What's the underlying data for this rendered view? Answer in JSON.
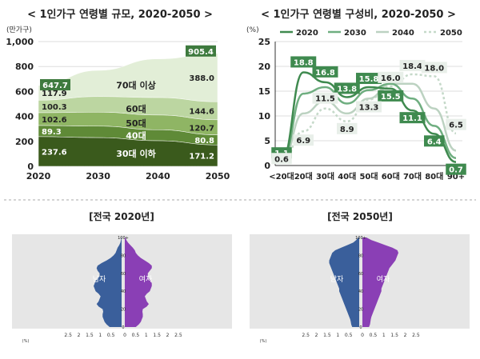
{
  "chart_data": [
    {
      "type": "area",
      "title": "< 1인가구 연령별 규모, 2020-2050 >",
      "ylabel": "(만가구)",
      "ylim": [
        0,
        1000
      ],
      "yticks": [
        "0",
        "200",
        "400",
        "600",
        "800",
        "1,000"
      ],
      "xticks": [
        "2020",
        "2030",
        "2040",
        "2050"
      ],
      "total_labels": [
        "647.7",
        "905.4"
      ],
      "series": [
        {
          "name": "30대 이하",
          "color": "#3a5a1c",
          "left_label": "237.6",
          "right_label": "171.2",
          "values": [
            237.6,
            230,
            205,
            171.2
          ]
        },
        {
          "name": "40대",
          "color": "#5f8a37",
          "left_label": "89.3",
          "right_label": "80.8",
          "values": [
            89.3,
            92,
            88,
            80.8
          ]
        },
        {
          "name": "50대",
          "color": "#8fb564",
          "left_label": "102.6",
          "right_label": "120.7",
          "values": [
            102.6,
            112,
            118,
            120.7
          ]
        },
        {
          "name": "60대",
          "color": "#bcd6a1",
          "left_label": "100.3",
          "right_label": "144.6",
          "values": [
            100.3,
            125,
            140,
            144.6
          ]
        },
        {
          "name": "70대 이상",
          "color": "#e2eed7",
          "left_label": "117.9",
          "right_label": "388.0",
          "values": [
            117.9,
            210,
            310,
            388.0
          ]
        }
      ]
    },
    {
      "type": "line",
      "title": "< 1인가구 연령별 구성비, 2020-2050 >",
      "ylabel": "(%)",
      "ylim": [
        0,
        25
      ],
      "yticks": [
        "0",
        "5",
        "10",
        "15",
        "20",
        "25"
      ],
      "categories": [
        "<20대",
        "20대",
        "30대",
        "40대",
        "50대",
        "60대",
        "70대",
        "80대",
        "90+"
      ],
      "series": [
        {
          "name": "2020",
          "color": "#3f8a4f",
          "dash": "",
          "values": [
            1.1,
            18.8,
            16.8,
            13.8,
            15.8,
            15.5,
            11.1,
            6.4,
            0.7
          ]
        },
        {
          "name": "2030",
          "color": "#6fae80",
          "dash": "",
          "values": [
            0.8,
            14.5,
            15.8,
            12.5,
            15.2,
            16.5,
            13.5,
            8.0,
            1.5
          ]
        },
        {
          "name": "2040",
          "color": "#bcd2c1",
          "dash": "",
          "values": [
            0.7,
            10.5,
            13.0,
            10.5,
            13.5,
            16.5,
            16.5,
            11.5,
            3.0
          ]
        },
        {
          "name": "2050",
          "color": "#c5d9c9",
          "dash": "3,3",
          "values": [
            0.6,
            6.9,
            11.5,
            8.9,
            13.3,
            16.0,
            18.4,
            18.0,
            6.5
          ]
        }
      ],
      "labels_2020": [
        {
          "idx": 0,
          "text": "1.1"
        },
        {
          "idx": 1,
          "text": "18.8"
        },
        {
          "idx": 2,
          "text": "16.8"
        },
        {
          "idx": 3,
          "text": "13.8"
        },
        {
          "idx": 4,
          "text": "15.8"
        },
        {
          "idx": 5,
          "text": "15.5"
        },
        {
          "idx": 6,
          "text": "11.1"
        },
        {
          "idx": 7,
          "text": "6.4"
        },
        {
          "idx": 8,
          "text": "0.7"
        }
      ],
      "labels_2050": [
        {
          "idx": 0,
          "text": "0.6"
        },
        {
          "idx": 1,
          "text": "6.9"
        },
        {
          "idx": 2,
          "text": "11.5"
        },
        {
          "idx": 3,
          "text": "8.9"
        },
        {
          "idx": 4,
          "text": "13.3"
        },
        {
          "idx": 5,
          "text": "16.0"
        },
        {
          "idx": 6,
          "text": "18.4"
        },
        {
          "idx": 7,
          "text": "18.0"
        },
        {
          "idx": 8,
          "text": "6.5"
        }
      ]
    },
    {
      "type": "area",
      "title": "[전국 2020년]",
      "male_label": "남자",
      "female_label": "여자",
      "male_color": "#3a5f9b",
      "female_color": "#8a3fb5",
      "y_ticks": [
        "0",
        "20",
        "40",
        "60",
        "80",
        "100+"
      ],
      "x_ticks_left": [
        "2.5",
        "2",
        "1.5",
        "1",
        "0.5"
      ],
      "x_ticks_right": [
        "0",
        "0.5",
        "1",
        "1.5",
        "2",
        "2.5"
      ],
      "x_unit": "(%)",
      "male_pct": [
        0.6,
        0.75,
        0.85,
        0.9,
        0.95,
        0.95,
        0.92,
        0.95,
        1.15,
        1.25,
        1.15,
        1.1,
        1.05,
        1.15,
        1.3,
        1.35,
        1.4,
        1.35,
        1.3,
        1.2,
        1.1,
        1.1,
        1.2,
        1.25,
        1.2,
        1.0,
        0.75,
        0.55,
        0.4,
        0.3,
        0.25,
        0.2,
        0.12,
        0.06,
        0.03,
        0.01
      ],
      "female_pct": [
        0.55,
        0.7,
        0.8,
        0.85,
        0.9,
        0.9,
        0.88,
        0.9,
        1.1,
        1.2,
        1.1,
        1.05,
        1.0,
        1.1,
        1.25,
        1.3,
        1.35,
        1.35,
        1.3,
        1.2,
        1.15,
        1.15,
        1.25,
        1.35,
        1.35,
        1.2,
        1.0,
        0.8,
        0.65,
        0.55,
        0.5,
        0.4,
        0.28,
        0.16,
        0.08,
        0.03
      ]
    },
    {
      "type": "area",
      "title": "[전국 2050년]",
      "male_label": "남자",
      "female_label": "여자",
      "male_color": "#3a5f9b",
      "female_color": "#8a3fb5",
      "y_ticks": [
        "0",
        "20",
        "40",
        "60",
        "80",
        "100+"
      ],
      "x_ticks_left": [
        "2.5",
        "2",
        "1.5",
        "1",
        "0.5"
      ],
      "x_ticks_right": [
        "0",
        "0.5",
        "1",
        "1.5",
        "2",
        "2.5"
      ],
      "x_unit": "(%)",
      "male_pct": [
        0.35,
        0.4,
        0.42,
        0.45,
        0.5,
        0.55,
        0.6,
        0.65,
        0.7,
        0.75,
        0.8,
        0.85,
        0.9,
        0.95,
        1.0,
        1.0,
        1.05,
        1.1,
        1.15,
        1.2,
        1.25,
        1.3,
        1.35,
        1.4,
        1.45,
        1.5,
        1.5,
        1.45,
        1.4,
        1.35,
        1.2,
        0.9,
        0.6,
        0.3,
        0.15,
        0.05
      ],
      "female_pct": [
        0.33,
        0.38,
        0.4,
        0.42,
        0.45,
        0.5,
        0.55,
        0.6,
        0.65,
        0.7,
        0.75,
        0.8,
        0.85,
        0.9,
        0.95,
        0.95,
        1.0,
        1.05,
        1.1,
        1.15,
        1.2,
        1.25,
        1.3,
        1.35,
        1.45,
        1.55,
        1.65,
        1.7,
        1.75,
        1.8,
        1.75,
        1.5,
        1.15,
        0.8,
        0.45,
        0.2
      ]
    }
  ]
}
